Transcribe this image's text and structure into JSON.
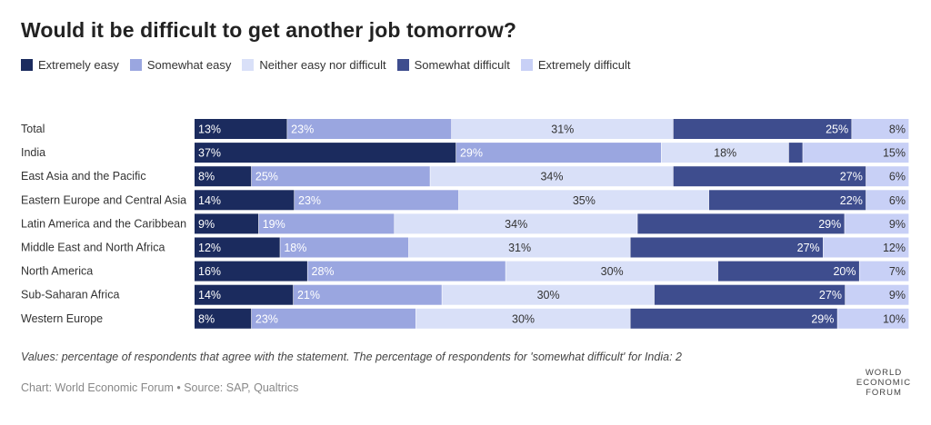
{
  "title": "Would it be difficult to get another job tomorrow?",
  "note": "Values: percentage of respondents that agree with the statement. The percentage of respondents for 'somewhat difficult' for India: 2",
  "footer": "Chart: World Economic Forum • Source: SAP, Qualtrics",
  "logo": {
    "line1": "WORLD",
    "line2": "ECONOMIC",
    "line3": "FORUM"
  },
  "chart_data": {
    "type": "bar",
    "orientation": "horizontal",
    "stacked": true,
    "normalized": true,
    "legend_position": "top-left",
    "categories": [
      "Total",
      "India",
      "East Asia and the Pacific",
      "Eastern Europe and Central Asia",
      "Latin America and the Caribbean",
      "Middle East and North Africa",
      "North America",
      "Sub-Saharan Africa",
      "Western Europe"
    ],
    "series": [
      {
        "name": "Extremely easy",
        "color": "#1b2b5e",
        "values": [
          13,
          37,
          8,
          14,
          9,
          12,
          16,
          14,
          8
        ],
        "labels": [
          "13%",
          "37%",
          "8%",
          "14%",
          "9%",
          "12%",
          "16%",
          "14%",
          "8%"
        ]
      },
      {
        "name": "Somewhat easy",
        "color": "#9aa6e0",
        "values": [
          23,
          29,
          25,
          23,
          19,
          18,
          28,
          21,
          23
        ],
        "labels": [
          "23%",
          "29%",
          "25%",
          "23%",
          "19%",
          "18%",
          "28%",
          "21%",
          "23%"
        ]
      },
      {
        "name": "Neither easy nor difficult",
        "color": "#d9e0f8",
        "values": [
          31,
          18,
          34,
          35,
          34,
          31,
          30,
          30,
          30
        ],
        "labels": [
          "31%",
          "18%",
          "34%",
          "35%",
          "34%",
          "31%",
          "30%",
          "30%",
          "30%"
        ]
      },
      {
        "name": "Somewhat difficult",
        "color": "#3e4d8e",
        "values": [
          25,
          2,
          27,
          22,
          29,
          27,
          20,
          27,
          29
        ],
        "labels": [
          "25%",
          "",
          "27%",
          "22%",
          "29%",
          "27%",
          "20%",
          "27%",
          "29%"
        ]
      },
      {
        "name": "Extremely difficult",
        "color": "#c8d0f6",
        "values": [
          8,
          15,
          6,
          6,
          9,
          12,
          7,
          9,
          10
        ],
        "labels": [
          "8%",
          "15%",
          "6%",
          "6%",
          "9%",
          "12%",
          "7%",
          "9%",
          "10%"
        ]
      }
    ]
  }
}
